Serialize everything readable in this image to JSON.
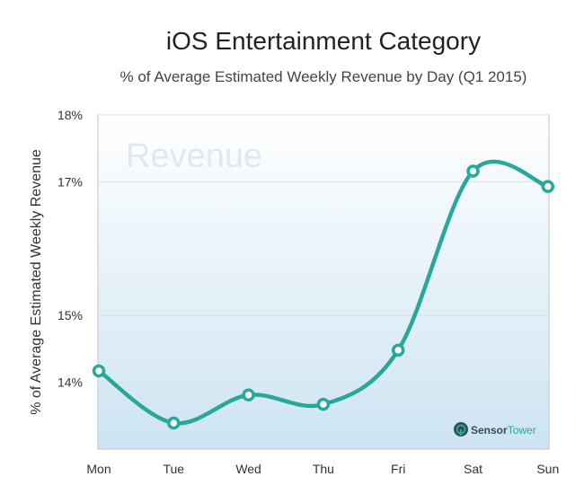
{
  "chart_data": {
    "type": "line",
    "title": "iOS Entertainment Category",
    "subtitle": "% of Average Estimated Weekly Revenue by Day (Q1 2015)",
    "xlabel": "",
    "ylabel": "% of Average Estimated Weekly Revenue",
    "categories": [
      "Mon",
      "Tue",
      "Wed",
      "Thu",
      "Fri",
      "Sat",
      "Sun"
    ],
    "series": [
      {
        "name": "Revenue",
        "values": [
          14.17,
          13.39,
          13.81,
          13.67,
          14.48,
          17.16,
          16.93
        ]
      }
    ],
    "yticks": [
      {
        "value": 18,
        "label": "18%"
      },
      {
        "value": 17,
        "label": "17%"
      },
      {
        "value": 15,
        "label": "15%"
      },
      {
        "value": 14,
        "label": "14%"
      }
    ],
    "ylim": [
      13.0,
      18.0
    ],
    "grid": true,
    "watermark": "Revenue",
    "line_color": "#28a89a",
    "background_top": "#ffffff",
    "background_bottom": "#cde4f2"
  },
  "branding": {
    "name_part1": "Sensor",
    "name_part2": "Tower",
    "icon": "sensortower-logo-icon"
  }
}
